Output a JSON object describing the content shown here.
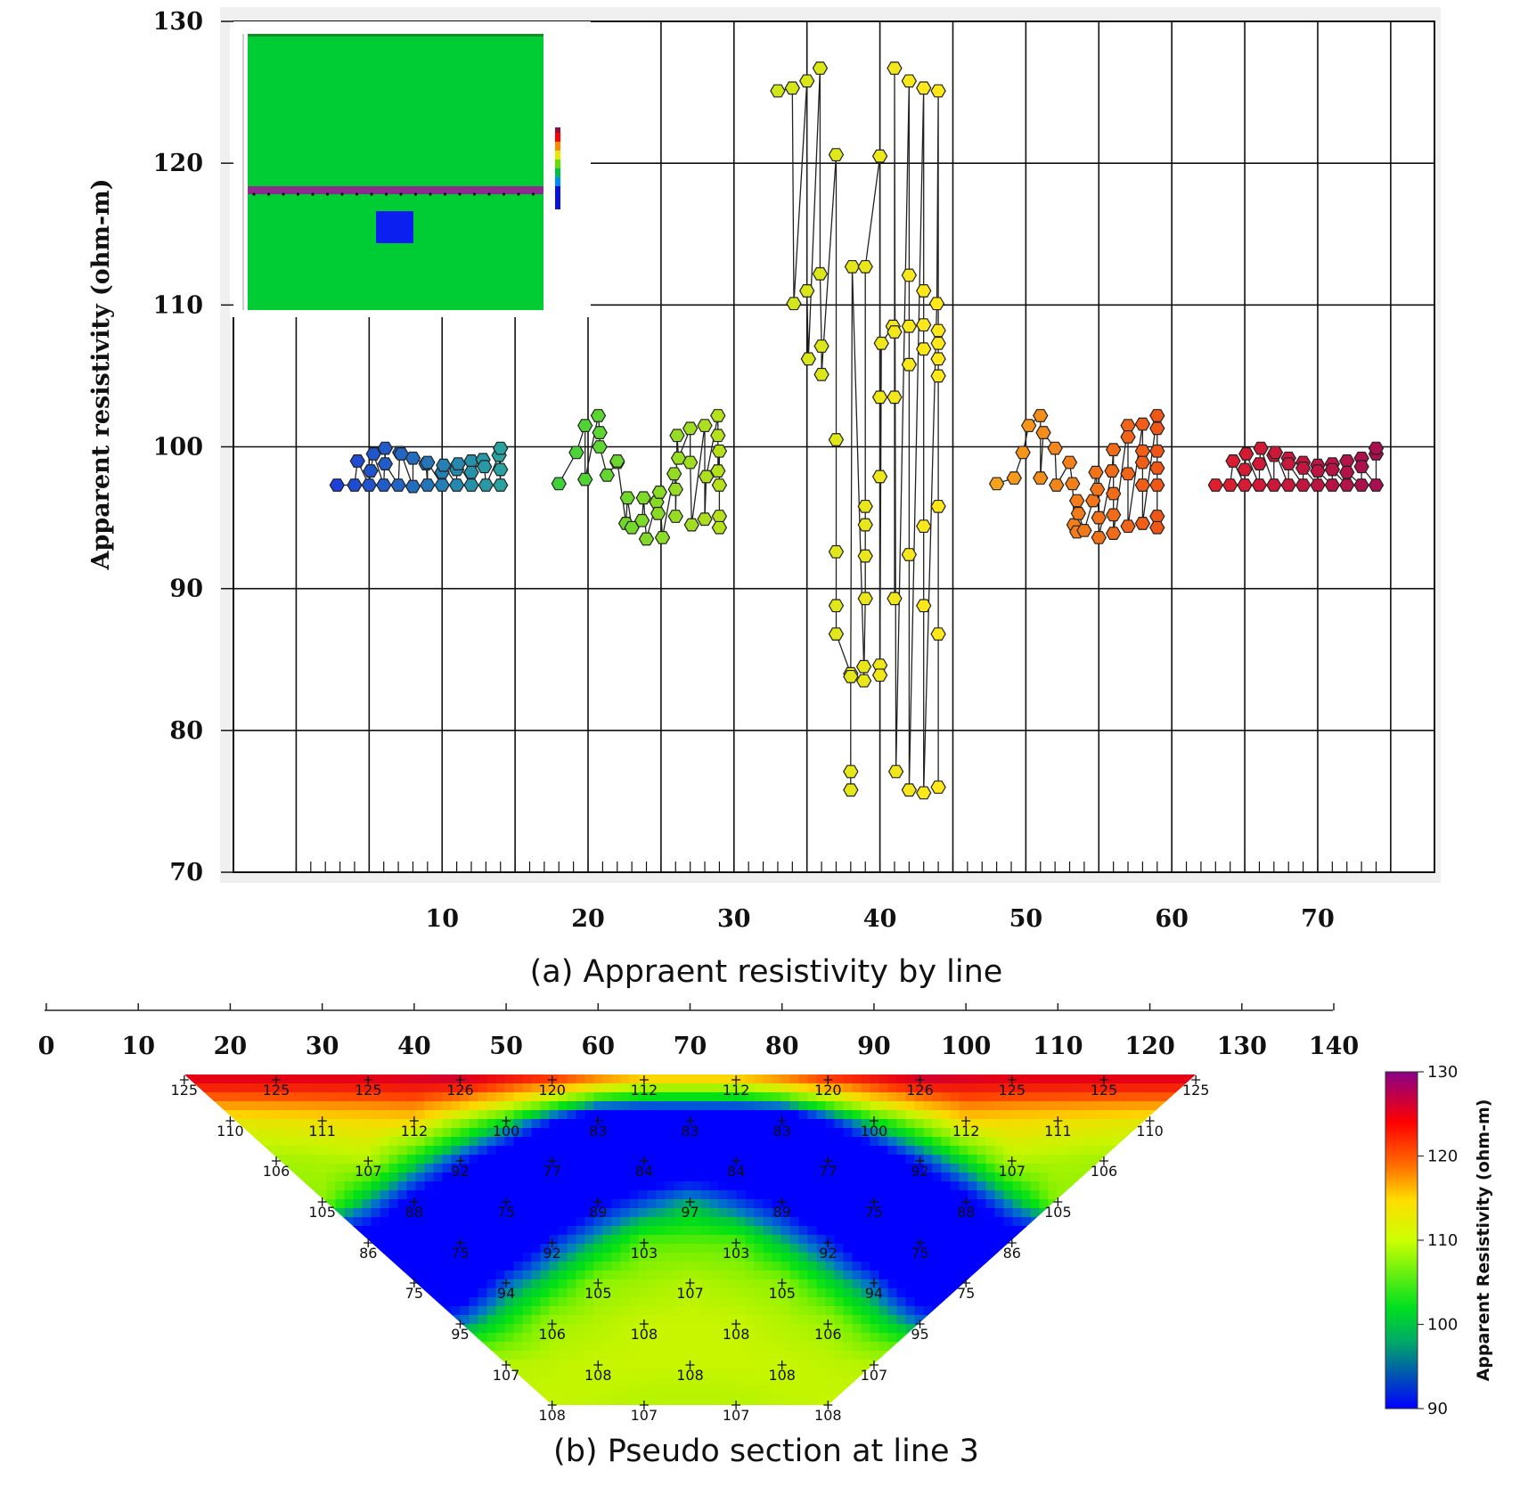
{
  "chart_data": [
    {
      "type": "scatter",
      "caption": "(a) Appraent resistivity by line",
      "ylabel": "Apparent resistivity (ohm-m)",
      "xlabel": "",
      "xlim": [
        0,
        75
      ],
      "ylim": [
        70,
        130
      ],
      "x_ticks": [
        10,
        20,
        30,
        40,
        50,
        60,
        70
      ],
      "y_ticks": [
        70,
        80,
        90,
        100,
        110,
        120,
        130
      ],
      "grid": true,
      "inset": "resistivity model: uniform green medium with a thin purple layer and a blue block",
      "series": [
        {
          "color": "#1e3fd8",
          "color_end": "#2aa3a0",
          "points": [
            [
              2.8,
              97.3
            ],
            [
              4,
              97.3
            ],
            [
              5,
              97.3
            ],
            [
              6,
              97.3
            ],
            [
              7,
              97.3
            ],
            [
              8,
              97.2
            ],
            [
              9,
              97.3
            ],
            [
              10,
              97.3
            ],
            [
              11,
              97.3
            ],
            [
              12,
              97.3
            ],
            [
              13,
              97.3
            ],
            [
              14,
              97.3
            ],
            [
              4.2,
              99
            ],
            [
              5.3,
              99.5
            ],
            [
              6.1,
              99.9
            ],
            [
              7.1,
              99.6
            ],
            [
              8,
              99.2
            ],
            [
              9,
              98.9
            ],
            [
              10.1,
              98.7
            ],
            [
              11.1,
              98.8
            ],
            [
              12,
              99
            ],
            [
              12.8,
              99.1
            ],
            [
              13.9,
              99.4
            ],
            [
              5.1,
              98.3
            ],
            [
              6.1,
              98.8
            ],
            [
              7.2,
              99.5
            ],
            [
              8.9,
              98.8
            ],
            [
              10,
              98.2
            ],
            [
              11,
              98.4
            ],
            [
              12,
              98.2
            ],
            [
              12.9,
              98.6
            ],
            [
              14,
              98.4
            ],
            [
              14,
              99.9
            ]
          ]
        },
        {
          "color": "#3fd13a",
          "color_end": "#b6e01c",
          "points": [
            [
              18,
              97.4
            ],
            [
              19.2,
              99.6
            ],
            [
              19.8,
              101.5
            ],
            [
              20.7,
              102.2
            ],
            [
              20.8,
              101
            ],
            [
              20.8,
              100
            ],
            [
              19.8,
              97.7
            ],
            [
              21.3,
              98
            ],
            [
              22,
              98.9
            ],
            [
              22,
              99
            ],
            [
              22.7,
              96.4
            ],
            [
              22.6,
              94.6
            ],
            [
              23,
              94.3
            ],
            [
              23.8,
              96.4
            ],
            [
              23.7,
              94.8
            ],
            [
              24,
              93.5
            ],
            [
              24.7,
              96.1
            ],
            [
              24.8,
              95.3
            ],
            [
              24.9,
              96.8
            ],
            [
              25.1,
              93.6
            ],
            [
              25.9,
              98.1
            ],
            [
              26,
              97
            ],
            [
              26,
              95.1
            ],
            [
              26.1,
              100.8
            ],
            [
              26.2,
              99.2
            ],
            [
              27,
              101.3
            ],
            [
              27,
              98.9
            ],
            [
              27.1,
              94.5
            ],
            [
              28,
              101.5
            ],
            [
              28.1,
              97.9
            ],
            [
              28,
              94.9
            ],
            [
              28.9,
              102.2
            ],
            [
              28.9,
              100.8
            ],
            [
              29,
              99.7
            ],
            [
              28.9,
              98.3
            ],
            [
              29,
              97.3
            ],
            [
              29,
              95.1
            ],
            [
              29,
              94.3
            ]
          ]
        },
        {
          "color": "#cfe61a",
          "color_end": "#ffe81a",
          "points": [
            [
              33,
              125.1
            ],
            [
              34,
              125.3
            ],
            [
              35,
              125.8
            ],
            [
              35.9,
              126.7
            ],
            [
              37,
              120.6
            ],
            [
              35.9,
              112.2
            ],
            [
              36,
              107.1
            ],
            [
              36,
              105.1
            ],
            [
              35.1,
              106.2
            ],
            [
              34.1,
              110.1
            ],
            [
              35,
              111
            ],
            [
              37,
              100.5
            ],
            [
              37,
              92.6
            ],
            [
              37,
              88.8
            ],
            [
              37,
              86.8
            ],
            [
              38,
              84
            ],
            [
              38,
              77.1
            ],
            [
              38,
              75.8
            ],
            [
              38,
              83.8
            ],
            [
              38.9,
              84.5
            ],
            [
              38.9,
              83.5
            ],
            [
              39,
              89.3
            ],
            [
              39,
              92.3
            ],
            [
              39,
              94.5
            ],
            [
              39,
              95.8
            ],
            [
              38.1,
              112.7
            ],
            [
              39,
              112.7
            ],
            [
              40,
              120.5
            ],
            [
              40,
              103.5
            ],
            [
              40.1,
              107.3
            ],
            [
              40,
              97.9
            ],
            [
              40,
              84.6
            ],
            [
              40,
              83.9
            ],
            [
              40.9,
              108.5
            ],
            [
              41,
              108.1
            ],
            [
              41,
              103.5
            ],
            [
              41,
              89.3
            ],
            [
              41.1,
              77.1
            ],
            [
              41,
              126.7
            ],
            [
              42,
              125.8
            ],
            [
              43,
              125.3
            ],
            [
              44,
              125.1
            ],
            [
              42,
              112.1
            ],
            [
              43,
              111
            ],
            [
              43.9,
              110.1
            ],
            [
              42,
              108.5
            ],
            [
              42,
              105.8
            ],
            [
              42,
              92.4
            ],
            [
              42,
              75.8
            ],
            [
              43,
              108.6
            ],
            [
              43,
              106.9
            ],
            [
              43,
              94.4
            ],
            [
              43,
              88.8
            ],
            [
              43,
              75.6
            ],
            [
              44,
              108.2
            ],
            [
              44,
              107.3
            ],
            [
              44,
              106.2
            ],
            [
              44,
              105
            ],
            [
              44,
              95.8
            ],
            [
              44,
              86.8
            ],
            [
              44,
              76
            ]
          ]
        },
        {
          "color": "#f6a21c",
          "color_end": "#ef5718",
          "points": [
            [
              48,
              97.4
            ],
            [
              49.2,
              97.8
            ],
            [
              49.8,
              99.6
            ],
            [
              50.2,
              101.5
            ],
            [
              51,
              102.2
            ],
            [
              51,
              97.8
            ],
            [
              51.2,
              101
            ],
            [
              52,
              99.9
            ],
            [
              52.1,
              97.3
            ],
            [
              53,
              98.9
            ],
            [
              53.2,
              97.4
            ],
            [
              53.5,
              96.2
            ],
            [
              53.3,
              94.5
            ],
            [
              53.5,
              94
            ],
            [
              53.6,
              95.3
            ],
            [
              54,
              94.1
            ],
            [
              54.6,
              96.2
            ],
            [
              54.8,
              98.2
            ],
            [
              54.9,
              97
            ],
            [
              55,
              95
            ],
            [
              55,
              93.6
            ],
            [
              55.9,
              98.3
            ],
            [
              56,
              99.8
            ],
            [
              56,
              96.7
            ],
            [
              56,
              95.2
            ],
            [
              56,
              93.9
            ],
            [
              57,
              101.5
            ],
            [
              57,
              100.7
            ],
            [
              57,
              98.1
            ],
            [
              57,
              94.4
            ],
            [
              58,
              101.6
            ],
            [
              58,
              99.7
            ],
            [
              58,
              98.9
            ],
            [
              58,
              97.3
            ],
            [
              58,
              94.6
            ],
            [
              59,
              102.2
            ],
            [
              59,
              101.3
            ],
            [
              59,
              99.7
            ],
            [
              59,
              98.5
            ],
            [
              59,
              97.3
            ],
            [
              59,
              95.1
            ],
            [
              59,
              94.3
            ]
          ]
        },
        {
          "color": "#e01e2e",
          "color_end": "#a8104f",
          "points": [
            [
              63,
              97.3
            ],
            [
              64,
              97.3
            ],
            [
              65,
              97.3
            ],
            [
              66,
              97.3
            ],
            [
              67,
              97.3
            ],
            [
              68,
              97.3
            ],
            [
              69,
              97.3
            ],
            [
              70,
              97.3
            ],
            [
              71,
              97.3
            ],
            [
              72,
              97.3
            ],
            [
              73,
              97.3
            ],
            [
              74,
              97.3
            ],
            [
              64.2,
              99
            ],
            [
              65.1,
              99.5
            ],
            [
              66.1,
              99.9
            ],
            [
              67.1,
              99.6
            ],
            [
              68,
              99.2
            ],
            [
              69,
              98.9
            ],
            [
              70,
              98.7
            ],
            [
              71,
              98.8
            ],
            [
              72,
              99
            ],
            [
              73,
              99.2
            ],
            [
              74,
              99.5
            ],
            [
              65,
              98.4
            ],
            [
              66,
              98.8
            ],
            [
              67,
              99.4
            ],
            [
              68,
              98.8
            ],
            [
              69,
              98.5
            ],
            [
              70,
              98.3
            ],
            [
              71,
              98.4
            ],
            [
              72,
              98.2
            ],
            [
              73,
              98.6
            ],
            [
              74,
              99.9
            ]
          ]
        }
      ]
    },
    {
      "type": "heatmap",
      "caption": "(b) Pseudo section at line 3",
      "x_ticks": [
        0,
        10,
        20,
        30,
        40,
        50,
        60,
        70,
        80,
        90,
        100,
        110,
        120,
        130,
        140
      ],
      "colorbar_title": "Apparent Resistivity (ohm-m)",
      "colorbar_ticks": [
        90,
        100,
        110,
        120,
        130
      ],
      "colorbar_range": [
        90,
        130
      ],
      "levels": [
        {
          "x": [
            15,
            25,
            35,
            45,
            55,
            65,
            75,
            85,
            95,
            105,
            115,
            125
          ],
          "values": [
            125,
            125,
            125,
            126,
            120,
            112,
            112,
            120,
            126,
            125,
            125,
            125
          ]
        },
        {
          "x": [
            20,
            30,
            40,
            50,
            60,
            70,
            80,
            90,
            100,
            110,
            120
          ],
          "values": [
            110,
            111,
            112,
            100,
            83,
            83,
            83,
            100,
            112,
            111,
            110
          ]
        },
        {
          "x": [
            25,
            35,
            45,
            55,
            65,
            75,
            85,
            95,
            105,
            115
          ],
          "values": [
            106,
            107,
            92,
            77,
            84,
            84,
            77,
            92,
            107,
            106
          ]
        },
        {
          "x": [
            30,
            40,
            50,
            60,
            70,
            80,
            90,
            100,
            110
          ],
          "values": [
            105,
            88,
            75,
            89,
            97,
            89,
            75,
            88,
            105
          ]
        },
        {
          "x": [
            35,
            45,
            55,
            65,
            75,
            85,
            95,
            105
          ],
          "values": [
            86,
            75,
            92,
            103,
            103,
            92,
            75,
            86
          ]
        },
        {
          "x": [
            40,
            50,
            60,
            70,
            80,
            90,
            100
          ],
          "values": [
            75,
            94,
            105,
            107,
            105,
            94,
            75
          ]
        },
        {
          "x": [
            45,
            55,
            65,
            75,
            85,
            95
          ],
          "values": [
            95,
            106,
            108,
            108,
            106,
            95
          ]
        },
        {
          "x": [
            50,
            60,
            70,
            80,
            90
          ],
          "values": [
            107,
            108,
            108,
            108,
            107
          ]
        },
        {
          "x": [
            55,
            65,
            75,
            85
          ],
          "values": [
            108,
            107,
            107,
            108
          ]
        }
      ]
    }
  ]
}
